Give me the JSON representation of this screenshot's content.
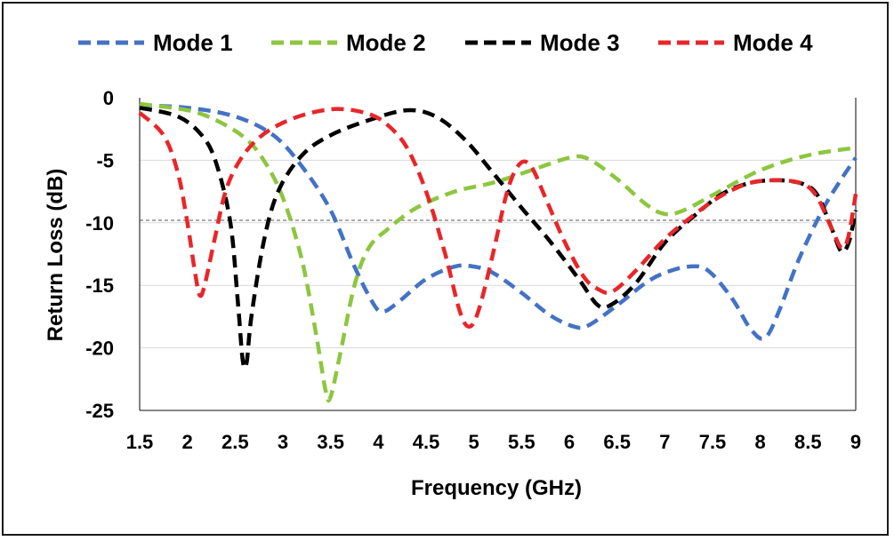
{
  "chart_data": {
    "type": "line",
    "xlabel": "Frequency (GHz)",
    "ylabel": "Return Loss (dB)",
    "xlim": [
      1.5,
      9
    ],
    "ylim": [
      -25,
      0
    ],
    "x_ticks": [
      "1.5",
      "2",
      "2.5",
      "3",
      "3.5",
      "4",
      "4.5",
      "5",
      "5.5",
      "6",
      "6.5",
      "7",
      "7.5",
      "8",
      "8.5",
      "9"
    ],
    "y_ticks": [
      "0",
      "-5",
      "-10",
      "-15",
      "-20",
      "-25"
    ],
    "reference_line": -9.8,
    "legend_position": "top",
    "series": [
      {
        "name": "Mode 1",
        "color": "#4472C4",
        "points": [
          [
            1.5,
            -0.6
          ],
          [
            2.0,
            -0.8
          ],
          [
            2.5,
            -1.5
          ],
          [
            2.9,
            -3.0
          ],
          [
            3.2,
            -5.5
          ],
          [
            3.5,
            -9.0
          ],
          [
            3.75,
            -13.5
          ],
          [
            3.95,
            -16.5
          ],
          [
            4.05,
            -17.1
          ],
          [
            4.2,
            -16.4
          ],
          [
            4.5,
            -14.5
          ],
          [
            4.8,
            -13.5
          ],
          [
            5.0,
            -13.5
          ],
          [
            5.2,
            -14.0
          ],
          [
            5.5,
            -15.6
          ],
          [
            5.8,
            -17.4
          ],
          [
            6.05,
            -18.3
          ],
          [
            6.2,
            -18.2
          ],
          [
            6.5,
            -16.6
          ],
          [
            6.8,
            -14.8
          ],
          [
            7.0,
            -14.0
          ],
          [
            7.25,
            -13.5
          ],
          [
            7.45,
            -13.8
          ],
          [
            7.7,
            -16.0
          ],
          [
            7.9,
            -18.5
          ],
          [
            8.05,
            -19.2
          ],
          [
            8.2,
            -17.0
          ],
          [
            8.4,
            -13.0
          ],
          [
            8.65,
            -9.0
          ],
          [
            8.85,
            -6.5
          ],
          [
            9.0,
            -4.8
          ]
        ]
      },
      {
        "name": "Mode 2",
        "color": "#8DC63F",
        "points": [
          [
            1.5,
            -0.5
          ],
          [
            2.0,
            -1.0
          ],
          [
            2.3,
            -1.8
          ],
          [
            2.6,
            -3.2
          ],
          [
            2.8,
            -5.0
          ],
          [
            3.0,
            -8.0
          ],
          [
            3.2,
            -13.0
          ],
          [
            3.35,
            -19.0
          ],
          [
            3.45,
            -23.5
          ],
          [
            3.5,
            -23.9
          ],
          [
            3.6,
            -20.5
          ],
          [
            3.75,
            -15.0
          ],
          [
            3.9,
            -12.0
          ],
          [
            4.1,
            -10.5
          ],
          [
            4.4,
            -8.8
          ],
          [
            4.8,
            -7.5
          ],
          [
            5.2,
            -6.8
          ],
          [
            5.6,
            -5.8
          ],
          [
            6.0,
            -4.8
          ],
          [
            6.2,
            -4.9
          ],
          [
            6.5,
            -6.5
          ],
          [
            6.8,
            -8.5
          ],
          [
            7.0,
            -9.3
          ],
          [
            7.2,
            -9.0
          ],
          [
            7.5,
            -7.8
          ],
          [
            8.0,
            -5.8
          ],
          [
            8.5,
            -4.6
          ],
          [
            9.0,
            -4.0
          ]
        ]
      },
      {
        "name": "Mode 3",
        "color": "#000000",
        "points": [
          [
            1.5,
            -0.8
          ],
          [
            1.9,
            -1.5
          ],
          [
            2.15,
            -3.0
          ],
          [
            2.3,
            -5.2
          ],
          [
            2.45,
            -10.0
          ],
          [
            2.53,
            -16.5
          ],
          [
            2.58,
            -21.0
          ],
          [
            2.62,
            -21.2
          ],
          [
            2.67,
            -17.5
          ],
          [
            2.8,
            -11.5
          ],
          [
            2.95,
            -7.5
          ],
          [
            3.2,
            -4.6
          ],
          [
            3.5,
            -3.0
          ],
          [
            3.9,
            -1.8
          ],
          [
            4.3,
            -1.0
          ],
          [
            4.6,
            -1.5
          ],
          [
            4.9,
            -3.3
          ],
          [
            5.2,
            -6.0
          ],
          [
            5.5,
            -8.8
          ],
          [
            5.8,
            -11.5
          ],
          [
            6.1,
            -14.5
          ],
          [
            6.3,
            -16.6
          ],
          [
            6.45,
            -16.5
          ],
          [
            6.7,
            -14.8
          ],
          [
            7.0,
            -11.6
          ],
          [
            7.3,
            -9.5
          ],
          [
            7.6,
            -7.7
          ],
          [
            7.9,
            -6.8
          ],
          [
            8.2,
            -6.6
          ],
          [
            8.45,
            -6.9
          ],
          [
            8.6,
            -7.8
          ],
          [
            8.75,
            -10.5
          ],
          [
            8.85,
            -12.3
          ],
          [
            8.93,
            -11.5
          ],
          [
            9.0,
            -9.0
          ]
        ]
      },
      {
        "name": "Mode 4",
        "color": "#E8262A",
        "points": [
          [
            1.5,
            -1.2
          ],
          [
            1.75,
            -3.0
          ],
          [
            1.9,
            -6.0
          ],
          [
            2.0,
            -10.0
          ],
          [
            2.08,
            -14.0
          ],
          [
            2.13,
            -15.8
          ],
          [
            2.18,
            -15.0
          ],
          [
            2.28,
            -11.5
          ],
          [
            2.4,
            -7.5
          ],
          [
            2.55,
            -5.0
          ],
          [
            2.75,
            -3.2
          ],
          [
            3.0,
            -2.0
          ],
          [
            3.3,
            -1.2
          ],
          [
            3.6,
            -0.9
          ],
          [
            3.9,
            -1.3
          ],
          [
            4.1,
            -2.2
          ],
          [
            4.3,
            -4.0
          ],
          [
            4.5,
            -7.5
          ],
          [
            4.7,
            -12.5
          ],
          [
            4.85,
            -17.0
          ],
          [
            4.95,
            -18.3
          ],
          [
            5.05,
            -17.0
          ],
          [
            5.2,
            -12.5
          ],
          [
            5.35,
            -7.5
          ],
          [
            5.48,
            -5.3
          ],
          [
            5.6,
            -5.5
          ],
          [
            5.75,
            -8.0
          ],
          [
            5.95,
            -11.5
          ],
          [
            6.15,
            -14.3
          ],
          [
            6.3,
            -15.3
          ],
          [
            6.45,
            -15.5
          ],
          [
            6.7,
            -13.8
          ],
          [
            7.0,
            -11.3
          ],
          [
            7.3,
            -9.4
          ],
          [
            7.6,
            -7.8
          ],
          [
            7.9,
            -6.8
          ],
          [
            8.2,
            -6.6
          ],
          [
            8.45,
            -6.9
          ],
          [
            8.6,
            -8.0
          ],
          [
            8.75,
            -10.5
          ],
          [
            8.85,
            -12.0
          ],
          [
            8.92,
            -11.2
          ],
          [
            9.0,
            -7.7
          ]
        ]
      }
    ]
  }
}
